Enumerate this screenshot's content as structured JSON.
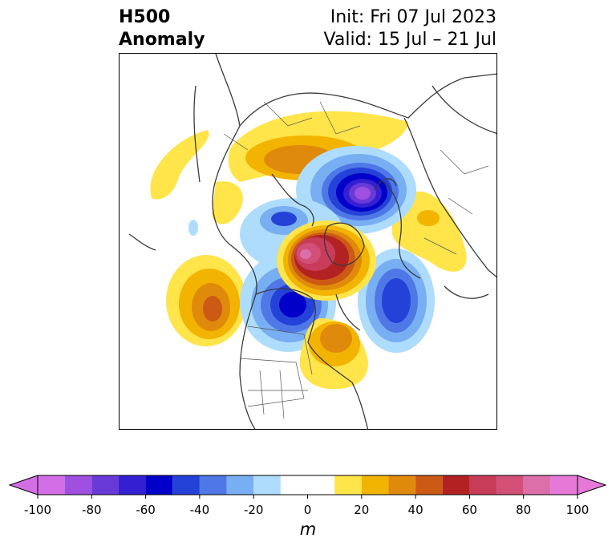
{
  "title": {
    "left_line1": "H500",
    "left_line2": "Anomaly",
    "right_line1": "Init: Fri 07 Jul 2023",
    "right_line2": "Valid: 15 Jul – 21 Jul"
  },
  "colorbar": {
    "unit": "m",
    "tick_labels": [
      "-100",
      "-80",
      "-60",
      "-40",
      "-20",
      "0",
      "20",
      "40",
      "60",
      "80",
      "100"
    ],
    "bounds": [
      -100,
      -90,
      -80,
      -70,
      -60,
      -50,
      -40,
      -30,
      -20,
      -10,
      10,
      20,
      30,
      40,
      50,
      60,
      70,
      80,
      90,
      100
    ],
    "colors": [
      "#d46ee6",
      "#a050e0",
      "#6a3ad8",
      "#3420d2",
      "#0000c8",
      "#2442d8",
      "#4f78e6",
      "#78aef2",
      "#aedcfc",
      "#ffffff",
      "#ffe44a",
      "#f2b400",
      "#e08a0c",
      "#cc5a14",
      "#b22222",
      "#c83c5a",
      "#d25078",
      "#dc6eaa",
      "#e678d8"
    ],
    "extend": "both"
  },
  "anomalies": [
    {
      "name": "positive-anomaly-north-pole",
      "value": 70
    },
    {
      "name": "negative-anomaly-siberia",
      "value": -90
    },
    {
      "name": "negative-anomaly-hudson-bay",
      "value": -60
    },
    {
      "name": "negative-anomaly-north-atlantic",
      "value": -50
    },
    {
      "name": "positive-anomaly-north-pacific",
      "value": 50
    },
    {
      "name": "positive-anomaly-eastern-us",
      "value": 40
    },
    {
      "name": "positive-anomaly-arctic-russia",
      "value": 40
    },
    {
      "name": "positive-anomaly-europe",
      "value": 20
    },
    {
      "name": "negative-anomaly-alaska",
      "value": -50
    }
  ]
}
